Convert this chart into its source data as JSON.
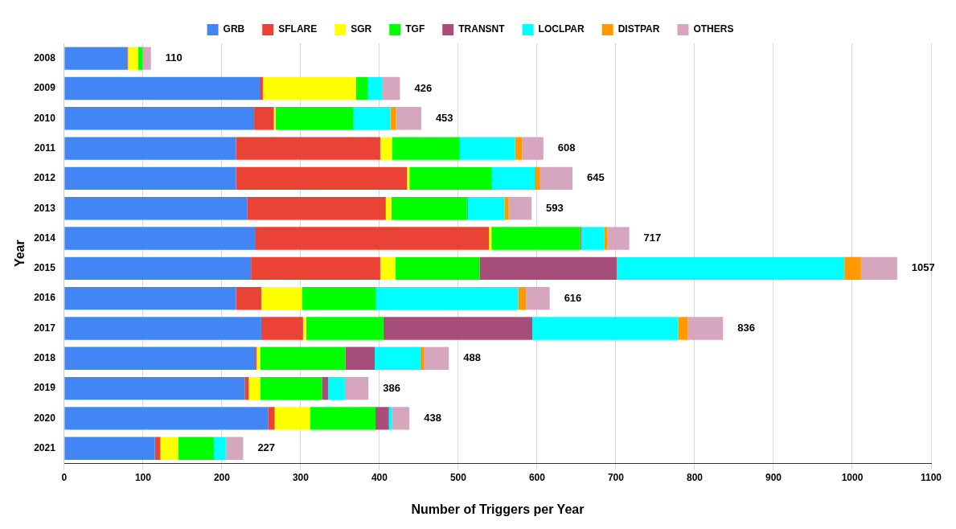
{
  "chart_data": {
    "type": "bar",
    "orientation": "horizontal",
    "stacked": true,
    "xlabel": "Number of Triggers per Year",
    "ylabel": "Year",
    "categories": [
      "2008",
      "2009",
      "2010",
      "2011",
      "2012",
      "2013",
      "2014",
      "2015",
      "2016",
      "2017",
      "2018",
      "2019",
      "2020",
      "2021"
    ],
    "series": [
      {
        "name": "GRB",
        "color": "#4285f4",
        "values": [
          80,
          248,
          241,
          218,
          218,
          232,
          242,
          237,
          218,
          250,
          243,
          229,
          259,
          115
        ]
      },
      {
        "name": "SFLARE",
        "color": "#ea4335",
        "values": [
          1,
          4,
          25,
          183,
          217,
          176,
          297,
          164,
          32,
          53,
          1,
          5,
          8,
          7
        ]
      },
      {
        "name": "SGR",
        "color": "#ffff00",
        "values": [
          13,
          118,
          2,
          15,
          3,
          7,
          3,
          19,
          52,
          4,
          5,
          15,
          45,
          23
        ]
      },
      {
        "name": "TGF",
        "color": "#00ff00",
        "values": [
          5,
          15,
          99,
          86,
          104,
          96,
          113,
          107,
          93,
          98,
          108,
          78,
          83,
          45
        ]
      },
      {
        "name": "TRANSNT",
        "color": "#a64d79",
        "values": [
          0,
          0,
          0,
          0,
          0,
          1,
          1,
          174,
          0,
          189,
          37,
          8,
          17,
          0
        ]
      },
      {
        "name": "LOCLPAR",
        "color": "#00ffff",
        "values": [
          0,
          19,
          47,
          70,
          55,
          47,
          29,
          289,
          181,
          185,
          58,
          21,
          4,
          15
        ]
      },
      {
        "name": "DISTPAR",
        "color": "#ff9900",
        "values": [
          1,
          0,
          7,
          9,
          7,
          5,
          4,
          21,
          10,
          12,
          5,
          1,
          0,
          1
        ]
      },
      {
        "name": "OTHERS",
        "color": "#d5a6bd",
        "values": [
          10,
          22,
          32,
          27,
          41,
          29,
          28,
          46,
          30,
          45,
          31,
          29,
          22,
          21
        ]
      }
    ],
    "totals": [
      "110",
      "426",
      "453",
      "608",
      "645",
      "593",
      "717",
      "1057",
      "616",
      "836",
      "488",
      "386",
      "438",
      "227"
    ],
    "xlim": [
      0,
      1100
    ],
    "xticks": [
      0,
      100,
      200,
      300,
      400,
      500,
      600,
      700,
      800,
      900,
      1000,
      1100
    ],
    "grid": "x",
    "legend": "top"
  }
}
